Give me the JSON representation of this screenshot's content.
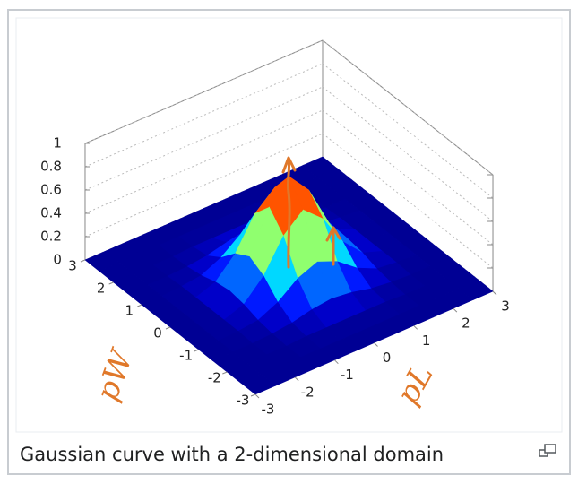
{
  "chart_data": {
    "type": "surface",
    "x": [
      -3,
      -2.5,
      -2,
      -1.5,
      -1,
      -0.5,
      0,
      0.5,
      1,
      1.5,
      2,
      2.5,
      3
    ],
    "y": [
      -3,
      -2.5,
      -2,
      -1.5,
      -1,
      -0.5,
      0,
      0.5,
      1,
      1.5,
      2,
      2.5,
      3
    ],
    "z": [
      [
        0,
        0,
        0,
        0,
        0,
        0,
        0,
        0,
        0,
        0,
        0,
        0,
        0
      ],
      [
        0,
        0,
        0,
        0,
        0,
        0,
        0,
        0,
        0,
        0,
        0,
        0,
        0
      ],
      [
        0,
        0,
        0,
        0,
        0.01,
        0.01,
        0.01,
        0.01,
        0.01,
        0,
        0,
        0,
        0
      ],
      [
        0,
        0,
        0,
        0.01,
        0.03,
        0.07,
        0.09,
        0.07,
        0.03,
        0.01,
        0,
        0,
        0
      ],
      [
        0,
        0,
        0.01,
        0.03,
        0.11,
        0.24,
        0.31,
        0.24,
        0.11,
        0.03,
        0.01,
        0,
        0
      ],
      [
        0,
        0,
        0.01,
        0.07,
        0.24,
        0.51,
        0.66,
        0.51,
        0.24,
        0.07,
        0.01,
        0,
        0
      ],
      [
        0,
        0,
        0.01,
        0.09,
        0.31,
        0.66,
        0.85,
        0.66,
        0.31,
        0.09,
        0.01,
        0,
        0
      ],
      [
        0,
        0,
        0.01,
        0.07,
        0.24,
        0.51,
        0.66,
        0.51,
        0.24,
        0.07,
        0.01,
        0,
        0
      ],
      [
        0,
        0,
        0.01,
        0.03,
        0.11,
        0.24,
        0.31,
        0.24,
        0.11,
        0.03,
        0.01,
        0,
        0
      ],
      [
        0,
        0,
        0,
        0.01,
        0.03,
        0.07,
        0.09,
        0.07,
        0.03,
        0.01,
        0,
        0,
        0
      ],
      [
        0,
        0,
        0,
        0,
        0.01,
        0.01,
        0.01,
        0.01,
        0.01,
        0,
        0,
        0,
        0
      ],
      [
        0,
        0,
        0,
        0,
        0,
        0,
        0,
        0,
        0,
        0,
        0,
        0,
        0
      ],
      [
        0,
        0,
        0,
        0,
        0,
        0,
        0,
        0,
        0,
        0,
        0,
        0,
        0
      ]
    ],
    "xlim": [
      -3,
      3
    ],
    "ylim": [
      -3,
      3
    ],
    "zlim": [
      0,
      1
    ],
    "xticks": [
      -3,
      -2,
      -1,
      0,
      1,
      2,
      3
    ],
    "yticks": [
      -3,
      -2,
      -1,
      0,
      1,
      2,
      3
    ],
    "zticks": [
      0,
      0.2,
      0.4,
      0.6,
      0.8,
      1
    ],
    "colormap": "jet",
    "annotations": [
      "pW",
      "pL"
    ]
  },
  "caption": "Gaussian curve with a 2-dimensional domain"
}
